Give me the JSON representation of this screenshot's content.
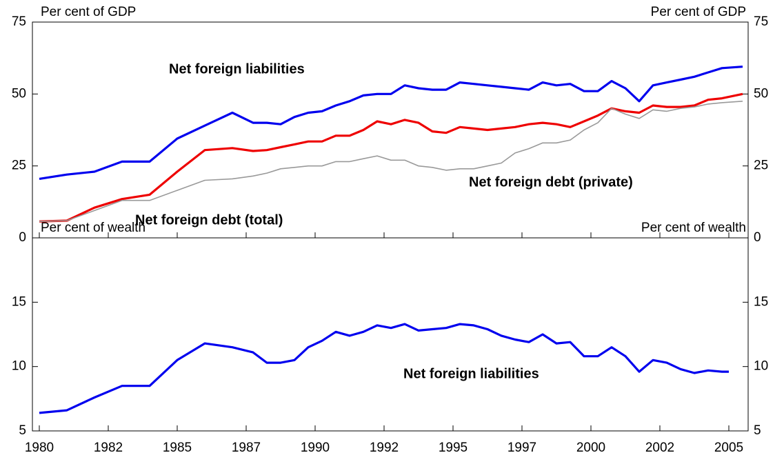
{
  "chart_data": [
    {
      "type": "line",
      "ylabel": "Per cent of GDP",
      "x": [
        1980,
        1981,
        1982,
        1983,
        1984,
        1985,
        1986,
        1987,
        1987.75,
        1988.25,
        1988.75,
        1989.25,
        1989.75,
        1990.25,
        1990.75,
        1991.25,
        1991.75,
        1992.25,
        1992.75,
        1993.25,
        1993.75,
        1994.25,
        1994.75,
        1995.25,
        1995.75,
        1996.25,
        1996.75,
        1997.25,
        1997.75,
        1998.25,
        1998.75,
        1999.25,
        1999.75,
        2000.25,
        2000.75,
        2001.25,
        2001.75,
        2002.25,
        2002.75,
        2003.25,
        2003.75,
        2004.25,
        2004.75,
        2005.5
      ],
      "series": [
        {
          "name": "Net foreign liabilities",
          "color": "#0000ee",
          "values": [
            20.5,
            22,
            23,
            26.5,
            26.5,
            34.5,
            39,
            43.5,
            40,
            40,
            39.5,
            42,
            43.5,
            44,
            46,
            47.5,
            49.5,
            50,
            50,
            53,
            52,
            51.5,
            51.5,
            54,
            53.5,
            53,
            52.5,
            52,
            51.5,
            54,
            53,
            53.5,
            51,
            51,
            54.5,
            52,
            47.5,
            53,
            54,
            55,
            56,
            57.5,
            59,
            59.5
          ]
        },
        {
          "name": "Net foreign debt (total)",
          "color": "#ee0000",
          "values": [
            5.7,
            6,
            10.5,
            13.5,
            15,
            23,
            30.5,
            31.2,
            30.2,
            30.5,
            31.5,
            32.5,
            33.5,
            33.5,
            35.5,
            35.5,
            37.5,
            40.5,
            39.5,
            41,
            40,
            37,
            36.5,
            38.5,
            38,
            37.5,
            38,
            38.5,
            39.5,
            40,
            39.5,
            38.5,
            40.5,
            42.5,
            45,
            44,
            43.5,
            46,
            45.5,
            45.5,
            46,
            48,
            48.5,
            50
          ]
        },
        {
          "name": "Net foreign debt (private)",
          "color": "#999999",
          "values": [
            5.7,
            6,
            9.5,
            13,
            13,
            16.5,
            20,
            20.5,
            21.5,
            22.5,
            24,
            24.5,
            25,
            25,
            26.5,
            26.5,
            27.5,
            28.5,
            27,
            27,
            25,
            24.5,
            23.5,
            24,
            24,
            25,
            26,
            29.5,
            31,
            33,
            33,
            34,
            37.5,
            40,
            45,
            43,
            41.5,
            44.5,
            44,
            45,
            45.5,
            46.5,
            47,
            47.5
          ]
        }
      ],
      "xlim": [
        1979.75,
        2005.7
      ],
      "ylim": [
        0,
        75
      ],
      "yticks": [
        0,
        25,
        50,
        75
      ]
    },
    {
      "type": "line",
      "ylabel": "Per cent of wealth",
      "x": [
        1980,
        1981,
        1982,
        1983,
        1984,
        1985,
        1986,
        1987,
        1987.75,
        1988.25,
        1988.75,
        1989.25,
        1989.75,
        1990.25,
        1990.75,
        1991.25,
        1991.75,
        1992.25,
        1992.75,
        1993.25,
        1993.75,
        1994.25,
        1994.75,
        1995.25,
        1995.75,
        1996.25,
        1996.75,
        1997.25,
        1997.75,
        1998.25,
        1998.75,
        1999.25,
        1999.75,
        2000.25,
        2000.75,
        2001.25,
        2001.75,
        2002.25,
        2002.75,
        2003.25,
        2003.75,
        2004.25,
        2004.75,
        2005
      ],
      "series": [
        {
          "name": "Net foreign liabilities",
          "color": "#0000ee",
          "values": [
            6.4,
            6.6,
            7.6,
            8.5,
            8.5,
            10.5,
            11.8,
            11.5,
            11.1,
            10.3,
            10.3,
            10.5,
            11.5,
            12,
            12.7,
            12.4,
            12.7,
            13.2,
            13,
            13.3,
            12.8,
            12.9,
            13,
            13.3,
            13.2,
            12.9,
            12.4,
            12.1,
            11.9,
            12.5,
            11.8,
            11.9,
            10.8,
            10.8,
            11.5,
            10.8,
            9.6,
            10.5,
            10.3,
            9.8,
            9.5,
            9.7,
            9.6,
            9.6
          ]
        }
      ],
      "xlim": [
        1979.75,
        2005.7
      ],
      "ylim": [
        5,
        20
      ],
      "yticks": [
        5,
        10,
        15
      ],
      "xticks": [
        1980,
        {
          "value": 1982.5,
          "label": "1982"
        },
        1985,
        {
          "value": 1987.5,
          "label": "1987"
        },
        1990,
        {
          "value": 1992.5,
          "label": "1992"
        },
        1995,
        {
          "value": 1997.5,
          "label": "1997"
        },
        2000,
        {
          "value": 2002.5,
          "label": "2002"
        },
        2005
      ]
    }
  ]
}
